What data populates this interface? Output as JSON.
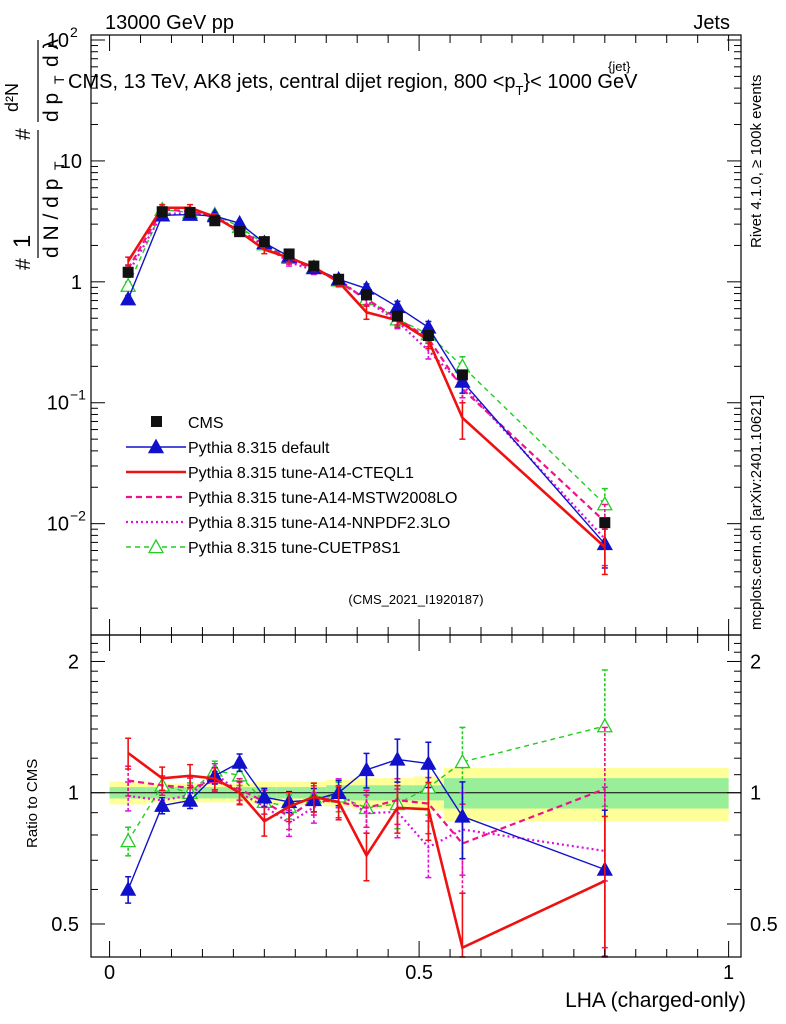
{
  "header": {
    "left": "13000 GeV pp",
    "right": "Jets",
    "title": "CMS, 13 TeV, AK8 jets, central dijet region, 800 <p",
    "title_sup": "{jet}",
    "title_sub": "T",
    "title_tail": "}< 1000 GeV",
    "side_rivet": "Rivet 4.1.0, ≥ 100k events",
    "side_mcplots": "mcplots.cern.ch [arXiv:2401.10621]",
    "analysis_id": "(CMS_2021_I1920187)"
  },
  "y_axis": {
    "label_main": "# 1 / d N / d p_T # d²N / d p_T d λ",
    "ticks": [
      {
        "v": 0.01,
        "base": "10",
        "exp": "−2"
      },
      {
        "v": 0.1,
        "base": "10",
        "exp": "−1"
      },
      {
        "v": 1,
        "base": "1",
        "exp": ""
      },
      {
        "v": 10,
        "base": "10",
        "exp": ""
      },
      {
        "v": 100,
        "base": "10",
        "exp": "2"
      }
    ]
  },
  "ratio_axis": {
    "label": "Ratio to CMS",
    "ticks": [
      "0.5",
      "1",
      "2"
    ]
  },
  "x_axis": {
    "label": "LHA (charged-only)",
    "ticks": [
      "0",
      "0.5",
      "1"
    ]
  },
  "legend": [
    {
      "key": "cms",
      "label": "CMS",
      "color": "#000000"
    },
    {
      "key": "default",
      "label": "Pythia 8.315 default",
      "color": "#1111cc"
    },
    {
      "key": "cteql1",
      "label": "Pythia 8.315 tune-A14-CTEQL1",
      "color": "#ee1111"
    },
    {
      "key": "mstw",
      "label": "Pythia 8.315 tune-A14-MSTW2008LO",
      "color": "#ee1188"
    },
    {
      "key": "nnpdf",
      "label": "Pythia 8.315 tune-A14-NNPDF2.3LO",
      "color": "#dd11dd"
    },
    {
      "key": "cuetp8",
      "label": "Pythia 8.315 tune-CUETP8S1",
      "color": "#22cc22"
    }
  ],
  "chart_data": {
    "type": "line",
    "x_scale": "linear",
    "y_scale": "log",
    "xlim": [
      -0.03,
      1.02
    ],
    "ylim": [
      0.0012,
      110
    ],
    "ratio_ylim": [
      0.42,
      2.3
    ],
    "x": [
      0.03,
      0.085,
      0.13,
      0.17,
      0.21,
      0.25,
      0.29,
      0.33,
      0.37,
      0.415,
      0.465,
      0.515,
      0.57,
      0.8
    ],
    "bin_edges": [
      0.0,
      0.06,
      0.11,
      0.15,
      0.19,
      0.23,
      0.27,
      0.31,
      0.35,
      0.39,
      0.44,
      0.49,
      0.54,
      0.6,
      1.0
    ],
    "cms": [
      1.2,
      3.8,
      3.75,
      3.2,
      2.6,
      2.15,
      1.7,
      1.35,
      1.05,
      0.78,
      0.52,
      0.36,
      0.17,
      0.0102
    ],
    "cms_band_stat": [
      0.03,
      0.03,
      0.03,
      0.03,
      0.03,
      0.03,
      0.03,
      0.03,
      0.04,
      0.04,
      0.04,
      0.04,
      0.08,
      0.08
    ],
    "cms_band_tot": [
      0.06,
      0.05,
      0.05,
      0.05,
      0.05,
      0.06,
      0.06,
      0.06,
      0.07,
      0.08,
      0.08,
      0.09,
      0.14,
      0.14
    ],
    "series": [
      {
        "key": "default",
        "name": "Pythia 8.315 default",
        "values": [
          0.72,
          3.55,
          3.6,
          3.5,
          3.05,
          2.1,
          1.62,
          1.3,
          1.05,
          0.88,
          0.62,
          0.42,
          0.15,
          0.0068
        ],
        "errors": [
          0.05,
          0.15,
          0.15,
          0.15,
          0.14,
          0.1,
          0.09,
          0.08,
          0.07,
          0.08,
          0.07,
          0.05,
          0.03,
          0.0025
        ]
      },
      {
        "key": "cteql1",
        "name": "Pythia 8.315 tune-A14-CTEQL1",
        "values": [
          1.48,
          4.1,
          4.1,
          3.45,
          2.6,
          1.85,
          1.58,
          1.32,
          1.0,
          0.56,
          0.48,
          0.33,
          0.075,
          0.0064
        ],
        "errors": [
          0.12,
          0.25,
          0.25,
          0.2,
          0.16,
          0.14,
          0.12,
          0.1,
          0.09,
          0.07,
          0.06,
          0.05,
          0.025,
          0.0026
        ]
      },
      {
        "key": "mstw",
        "name": "Pythia 8.315 tune-A14-MSTW2008LO",
        "values": [
          1.28,
          3.95,
          3.85,
          3.4,
          2.65,
          2.05,
          1.5,
          1.3,
          1.0,
          0.72,
          0.5,
          0.34,
          0.13,
          0.0104
        ],
        "errors": [
          0.1,
          0.2,
          0.2,
          0.18,
          0.15,
          0.13,
          0.1,
          0.1,
          0.08,
          0.07,
          0.06,
          0.05,
          0.03,
          0.004
        ]
      },
      {
        "key": "nnpdf",
        "name": "Pythia 8.315 tune-A14-NNPDF2.3LO",
        "values": [
          1.18,
          3.65,
          3.7,
          3.55,
          2.6,
          2.0,
          1.45,
          1.25,
          1.05,
          0.7,
          0.47,
          0.27,
          0.14,
          0.0075
        ],
        "errors": [
          0.09,
          0.2,
          0.2,
          0.18,
          0.15,
          0.13,
          0.1,
          0.1,
          0.08,
          0.07,
          0.06,
          0.04,
          0.03,
          0.003
        ]
      },
      {
        "key": "cuetp8",
        "name": "Pythia 8.315 tune-CUETP8S1",
        "values": [
          0.93,
          3.95,
          3.75,
          3.6,
          2.85,
          2.05,
          1.58,
          1.32,
          1.03,
          0.72,
          0.49,
          0.37,
          0.2,
          0.0145
        ],
        "errors": [
          0.07,
          0.2,
          0.2,
          0.18,
          0.15,
          0.13,
          0.1,
          0.1,
          0.08,
          0.07,
          0.06,
          0.05,
          0.04,
          0.005
        ]
      }
    ]
  }
}
